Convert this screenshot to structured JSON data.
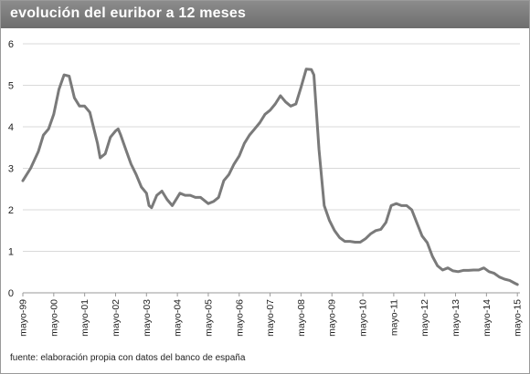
{
  "title": "evolución del euribor a 12 meses",
  "source": "fuente: elaboración propia con datos del banco de españa",
  "colors": {
    "line": "#7a7a7a",
    "title_bar": "#7d7d7d",
    "axis": "#9a9a9a",
    "grid": "#d9d9d9"
  },
  "chart_data": {
    "type": "line",
    "title": "evolución del euribor a 12 meses",
    "xlabel": "",
    "ylabel": "",
    "ylim": [
      0,
      6
    ],
    "yticks": [
      0,
      1,
      2,
      3,
      4,
      5,
      6
    ],
    "xlim": [
      "1999-05",
      "2015-06"
    ],
    "grid": true,
    "legend": "none",
    "x_tick_labels": [
      {
        "label": "mayo-99",
        "x": "1999-05"
      },
      {
        "label": "mayo-00",
        "x": "2000-05"
      },
      {
        "label": "mayo-01",
        "x": "2001-05"
      },
      {
        "label": "mayo-02",
        "x": "2002-05"
      },
      {
        "label": "mayo-03",
        "x": "2003-05"
      },
      {
        "label": "mayo-04",
        "x": "2004-05"
      },
      {
        "label": "mayo-05",
        "x": "2005-05"
      },
      {
        "label": "mayo-06",
        "x": "2006-05"
      },
      {
        "label": "mayo-07",
        "x": "2007-05"
      },
      {
        "label": "mayo-08",
        "x": "2008-05"
      },
      {
        "label": "mayo-09",
        "x": "2009-05"
      },
      {
        "label": "mayo-10",
        "x": "2010-05"
      },
      {
        "label": "mayo-11",
        "x": "2011-05"
      },
      {
        "label": "mayo-12",
        "x": "2012-05"
      },
      {
        "label": "mayo-13",
        "x": "2013-05"
      },
      {
        "label": "mayo-14",
        "x": "2014-05"
      },
      {
        "label": "mayo-15",
        "x": "2015-05"
      }
    ],
    "series": [
      {
        "points": [
          [
            "1999-05",
            2.7
          ],
          [
            "1999-08",
            3.0
          ],
          [
            "1999-11",
            3.4
          ],
          [
            "2000-01",
            3.8
          ],
          [
            "2000-03",
            3.95
          ],
          [
            "2000-05",
            4.3
          ],
          [
            "2000-07",
            4.9
          ],
          [
            "2000-09",
            5.25
          ],
          [
            "2000-11",
            5.22
          ],
          [
            "2001-01",
            4.7
          ],
          [
            "2001-03",
            4.5
          ],
          [
            "2001-05",
            4.5
          ],
          [
            "2001-07",
            4.35
          ],
          [
            "2001-08",
            4.1
          ],
          [
            "2001-10",
            3.6
          ],
          [
            "2001-11",
            3.25
          ],
          [
            "2002-01",
            3.35
          ],
          [
            "2002-03",
            3.75
          ],
          [
            "2002-05",
            3.9
          ],
          [
            "2002-06",
            3.95
          ],
          [
            "2002-07",
            3.8
          ],
          [
            "2002-09",
            3.45
          ],
          [
            "2002-11",
            3.1
          ],
          [
            "2003-01",
            2.85
          ],
          [
            "2003-03",
            2.55
          ],
          [
            "2003-05",
            2.4
          ],
          [
            "2003-06",
            2.1
          ],
          [
            "2003-07",
            2.05
          ],
          [
            "2003-09",
            2.35
          ],
          [
            "2003-11",
            2.45
          ],
          [
            "2004-01",
            2.25
          ],
          [
            "2004-03",
            2.1
          ],
          [
            "2004-05",
            2.3
          ],
          [
            "2004-06",
            2.4
          ],
          [
            "2004-08",
            2.35
          ],
          [
            "2004-10",
            2.35
          ],
          [
            "2004-12",
            2.3
          ],
          [
            "2005-02",
            2.3
          ],
          [
            "2005-05",
            2.15
          ],
          [
            "2005-07",
            2.2
          ],
          [
            "2005-09",
            2.3
          ],
          [
            "2005-11",
            2.7
          ],
          [
            "2006-01",
            2.85
          ],
          [
            "2006-03",
            3.1
          ],
          [
            "2006-05",
            3.3
          ],
          [
            "2006-07",
            3.6
          ],
          [
            "2006-09",
            3.8
          ],
          [
            "2006-11",
            3.95
          ],
          [
            "2007-01",
            4.1
          ],
          [
            "2007-03",
            4.3
          ],
          [
            "2007-05",
            4.4
          ],
          [
            "2007-07",
            4.55
          ],
          [
            "2007-09",
            4.75
          ],
          [
            "2007-11",
            4.6
          ],
          [
            "2008-01",
            4.5
          ],
          [
            "2008-03",
            4.55
          ],
          [
            "2008-05",
            4.95
          ],
          [
            "2008-07",
            5.39
          ],
          [
            "2008-09",
            5.38
          ],
          [
            "2008-10",
            5.25
          ],
          [
            "2008-12",
            3.45
          ],
          [
            "2009-02",
            2.1
          ],
          [
            "2009-04",
            1.75
          ],
          [
            "2009-06",
            1.5
          ],
          [
            "2009-08",
            1.33
          ],
          [
            "2009-10",
            1.24
          ],
          [
            "2009-12",
            1.24
          ],
          [
            "2010-02",
            1.22
          ],
          [
            "2010-04",
            1.22
          ],
          [
            "2010-06",
            1.3
          ],
          [
            "2010-08",
            1.42
          ],
          [
            "2010-10",
            1.5
          ],
          [
            "2010-12",
            1.53
          ],
          [
            "2011-02",
            1.7
          ],
          [
            "2011-04",
            2.1
          ],
          [
            "2011-06",
            2.15
          ],
          [
            "2011-08",
            2.1
          ],
          [
            "2011-10",
            2.1
          ],
          [
            "2011-12",
            2.0
          ],
          [
            "2012-02",
            1.68
          ],
          [
            "2012-04",
            1.37
          ],
          [
            "2012-06",
            1.21
          ],
          [
            "2012-08",
            0.88
          ],
          [
            "2012-10",
            0.65
          ],
          [
            "2012-12",
            0.55
          ],
          [
            "2013-02",
            0.6
          ],
          [
            "2013-04",
            0.53
          ],
          [
            "2013-06",
            0.51
          ],
          [
            "2013-08",
            0.54
          ],
          [
            "2013-10",
            0.54
          ],
          [
            "2013-12",
            0.55
          ],
          [
            "2014-02",
            0.55
          ],
          [
            "2014-04",
            0.6
          ],
          [
            "2014-06",
            0.51
          ],
          [
            "2014-08",
            0.47
          ],
          [
            "2014-10",
            0.38
          ],
          [
            "2014-12",
            0.33
          ],
          [
            "2015-02",
            0.3
          ],
          [
            "2015-04",
            0.23
          ],
          [
            "2015-05",
            0.2
          ]
        ]
      }
    ]
  }
}
